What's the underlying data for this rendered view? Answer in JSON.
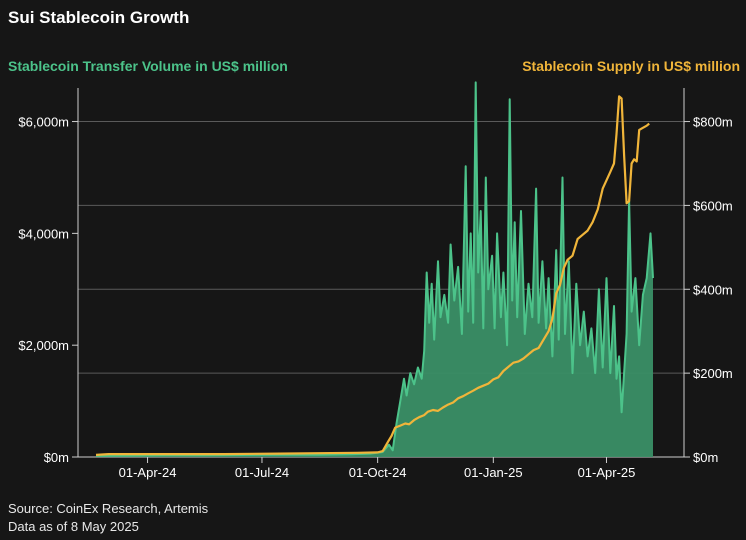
{
  "title": "Sui Stablecoin Growth",
  "left_axis_label": "Stablecoin Transfer Volume in US$ million",
  "right_axis_label": "Stablecoin Supply in US$ million",
  "footer": {
    "source": "Source: CoinEx Research, Artemis",
    "date_note": "Data as of 8 May 2025"
  },
  "colors": {
    "background": "#161616",
    "volume_fill": "#3a8f66",
    "volume_line": "#4cc38a",
    "supply_line": "#f0b53a",
    "grid": "#5a5a5a",
    "text": "#ffffff"
  },
  "chart_data": {
    "type": "area+line",
    "title": "Sui Stablecoin Growth",
    "x_range": [
      "2024-02-20",
      "2025-05-08"
    ],
    "x_ticks": [
      {
        "date": "2024-04-01",
        "label": "01-Apr-24"
      },
      {
        "date": "2024-07-01",
        "label": "01-Jul-24"
      },
      {
        "date": "2024-10-01",
        "label": "01-Oct-24"
      },
      {
        "date": "2025-01-01",
        "label": "01-Jan-25"
      },
      {
        "date": "2025-04-01",
        "label": "01-Apr-25"
      }
    ],
    "left_axis": {
      "label": "Stablecoin Transfer Volume in US$ million",
      "range": [
        0,
        6600
      ],
      "ticks": [
        {
          "value": 0,
          "label": "$0m"
        },
        {
          "value": 2000,
          "label": "$2,000m"
        },
        {
          "value": 4000,
          "label": "$4,000m"
        },
        {
          "value": 6000,
          "label": "$6,000m"
        }
      ]
    },
    "right_axis": {
      "label": "Stablecoin Supply in US$ million",
      "range": [
        0,
        880
      ],
      "ticks": [
        {
          "value": 0,
          "label": "$0m"
        },
        {
          "value": 200,
          "label": "$200m"
        },
        {
          "value": 400,
          "label": "$400m"
        },
        {
          "value": 600,
          "label": "$600m"
        },
        {
          "value": 800,
          "label": "$800m"
        }
      ]
    },
    "series": [
      {
        "name": "Stablecoin Transfer Volume",
        "axis": "left",
        "type": "area",
        "points": [
          [
            "2024-02-20",
            20
          ],
          [
            "2024-03-15",
            25
          ],
          [
            "2024-04-15",
            30
          ],
          [
            "2024-05-15",
            30
          ],
          [
            "2024-06-15",
            35
          ],
          [
            "2024-07-15",
            40
          ],
          [
            "2024-08-15",
            40
          ],
          [
            "2024-09-10",
            50
          ],
          [
            "2024-09-25",
            60
          ],
          [
            "2024-10-05",
            90
          ],
          [
            "2024-10-10",
            220
          ],
          [
            "2024-10-13",
            120
          ],
          [
            "2024-10-16",
            600
          ],
          [
            "2024-10-19",
            1000
          ],
          [
            "2024-10-22",
            1400
          ],
          [
            "2024-10-24",
            1100
          ],
          [
            "2024-10-27",
            1500
          ],
          [
            "2024-10-30",
            1300
          ],
          [
            "2024-11-02",
            1600
          ],
          [
            "2024-11-05",
            1400
          ],
          [
            "2024-11-07",
            1900
          ],
          [
            "2024-11-09",
            3300
          ],
          [
            "2024-11-11",
            2400
          ],
          [
            "2024-11-13",
            3100
          ],
          [
            "2024-11-15",
            2100
          ],
          [
            "2024-11-18",
            3500
          ],
          [
            "2024-11-20",
            2500
          ],
          [
            "2024-11-23",
            2900
          ],
          [
            "2024-11-26",
            2400
          ],
          [
            "2024-11-28",
            3800
          ],
          [
            "2024-12-01",
            2800
          ],
          [
            "2024-12-04",
            3400
          ],
          [
            "2024-12-07",
            2200
          ],
          [
            "2024-12-10",
            5200
          ],
          [
            "2024-12-12",
            2600
          ],
          [
            "2024-12-14",
            4000
          ],
          [
            "2024-12-16",
            2400
          ],
          [
            "2024-12-18",
            6700
          ],
          [
            "2024-12-20",
            3300
          ],
          [
            "2024-12-22",
            4400
          ],
          [
            "2024-12-24",
            2300
          ],
          [
            "2024-12-26",
            5000
          ],
          [
            "2024-12-28",
            3000
          ],
          [
            "2024-12-31",
            3600
          ],
          [
            "2025-01-02",
            2300
          ],
          [
            "2025-01-04",
            4000
          ],
          [
            "2025-01-07",
            2500
          ],
          [
            "2025-01-09",
            3300
          ],
          [
            "2025-01-12",
            2000
          ],
          [
            "2025-01-14",
            6400
          ],
          [
            "2025-01-16",
            2800
          ],
          [
            "2025-01-18",
            4200
          ],
          [
            "2025-01-20",
            2500
          ],
          [
            "2025-01-23",
            4400
          ],
          [
            "2025-01-26",
            2200
          ],
          [
            "2025-01-29",
            3100
          ],
          [
            "2025-02-01",
            2500
          ],
          [
            "2025-02-04",
            4800
          ],
          [
            "2025-02-06",
            2400
          ],
          [
            "2025-02-09",
            3500
          ],
          [
            "2025-02-12",
            2300
          ],
          [
            "2025-02-14",
            3200
          ],
          [
            "2025-02-17",
            1800
          ],
          [
            "2025-02-20",
            3700
          ],
          [
            "2025-02-22",
            2100
          ],
          [
            "2025-02-25",
            5000
          ],
          [
            "2025-02-27",
            2200
          ],
          [
            "2025-03-02",
            3500
          ],
          [
            "2025-03-05",
            1500
          ],
          [
            "2025-03-08",
            3100
          ],
          [
            "2025-03-11",
            2000
          ],
          [
            "2025-03-14",
            2600
          ],
          [
            "2025-03-17",
            1800
          ],
          [
            "2025-03-20",
            2300
          ],
          [
            "2025-03-23",
            1500
          ],
          [
            "2025-03-26",
            3000
          ],
          [
            "2025-03-29",
            1600
          ],
          [
            "2025-04-01",
            3200
          ],
          [
            "2025-04-04",
            1500
          ],
          [
            "2025-04-07",
            2700
          ],
          [
            "2025-04-09",
            1400
          ],
          [
            "2025-04-11",
            1800
          ],
          [
            "2025-04-13",
            800
          ],
          [
            "2025-04-15",
            1500
          ],
          [
            "2025-04-17",
            2200
          ],
          [
            "2025-04-19",
            4600
          ],
          [
            "2025-04-21",
            2600
          ],
          [
            "2025-04-24",
            3200
          ],
          [
            "2025-04-27",
            2000
          ],
          [
            "2025-04-30",
            2900
          ],
          [
            "2025-05-03",
            3200
          ],
          [
            "2025-05-06",
            4000
          ],
          [
            "2025-05-08",
            3200
          ]
        ]
      },
      {
        "name": "Stablecoin Supply",
        "axis": "right",
        "type": "line",
        "points": [
          [
            "2024-02-20",
            5
          ],
          [
            "2024-03-01",
            7
          ],
          [
            "2024-04-15",
            7
          ],
          [
            "2024-06-01",
            7
          ],
          [
            "2024-07-15",
            8
          ],
          [
            "2024-08-15",
            9
          ],
          [
            "2024-09-15",
            10
          ],
          [
            "2024-10-01",
            11
          ],
          [
            "2024-10-05",
            14
          ],
          [
            "2024-10-09",
            35
          ],
          [
            "2024-10-12",
            50
          ],
          [
            "2024-10-15",
            70
          ],
          [
            "2024-10-19",
            75
          ],
          [
            "2024-10-23",
            80
          ],
          [
            "2024-10-26",
            78
          ],
          [
            "2024-10-30",
            88
          ],
          [
            "2024-11-03",
            95
          ],
          [
            "2024-11-07",
            100
          ],
          [
            "2024-11-10",
            108
          ],
          [
            "2024-11-14",
            112
          ],
          [
            "2024-11-18",
            110
          ],
          [
            "2024-11-22",
            118
          ],
          [
            "2024-11-26",
            125
          ],
          [
            "2024-11-30",
            130
          ],
          [
            "2024-12-04",
            140
          ],
          [
            "2024-12-08",
            145
          ],
          [
            "2024-12-12",
            152
          ],
          [
            "2024-12-16",
            158
          ],
          [
            "2024-12-20",
            165
          ],
          [
            "2024-12-24",
            170
          ],
          [
            "2024-12-28",
            175
          ],
          [
            "2025-01-01",
            185
          ],
          [
            "2025-01-05",
            190
          ],
          [
            "2025-01-09",
            205
          ],
          [
            "2025-01-13",
            215
          ],
          [
            "2025-01-17",
            225
          ],
          [
            "2025-01-21",
            228
          ],
          [
            "2025-01-25",
            235
          ],
          [
            "2025-01-29",
            245
          ],
          [
            "2025-02-02",
            255
          ],
          [
            "2025-02-06",
            260
          ],
          [
            "2025-02-10",
            280
          ],
          [
            "2025-02-14",
            300
          ],
          [
            "2025-02-17",
            330
          ],
          [
            "2025-02-20",
            390
          ],
          [
            "2025-02-23",
            410
          ],
          [
            "2025-02-26",
            450
          ],
          [
            "2025-03-01",
            470
          ],
          [
            "2025-03-05",
            480
          ],
          [
            "2025-03-09",
            520
          ],
          [
            "2025-03-13",
            530
          ],
          [
            "2025-03-17",
            540
          ],
          [
            "2025-03-21",
            560
          ],
          [
            "2025-03-25",
            590
          ],
          [
            "2025-03-29",
            640
          ],
          [
            "2025-04-01",
            660
          ],
          [
            "2025-04-04",
            680
          ],
          [
            "2025-04-07",
            700
          ],
          [
            "2025-04-09",
            770
          ],
          [
            "2025-04-11",
            860
          ],
          [
            "2025-04-13",
            855
          ],
          [
            "2025-04-15",
            720
          ],
          [
            "2025-04-17",
            605
          ],
          [
            "2025-04-19",
            610
          ],
          [
            "2025-04-21",
            700
          ],
          [
            "2025-04-23",
            710
          ],
          [
            "2025-04-25",
            705
          ],
          [
            "2025-04-27",
            780
          ],
          [
            "2025-04-30",
            785
          ],
          [
            "2025-05-03",
            790
          ],
          [
            "2025-05-05",
            795
          ]
        ]
      }
    ]
  }
}
